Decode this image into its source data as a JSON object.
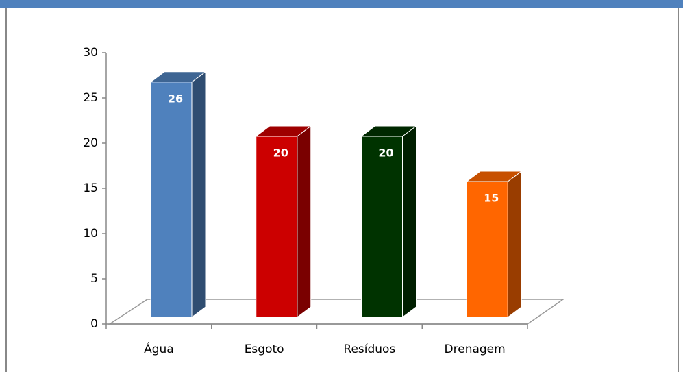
{
  "chart_data": {
    "type": "bar",
    "categories": [
      "Água",
      "Esgoto",
      "Resíduos",
      "Drenagem"
    ],
    "values": [
      26,
      20,
      20,
      15
    ],
    "colors": [
      "#4f81bd",
      "#cc0000",
      "#003300",
      "#ff6600"
    ],
    "ylim": [
      0,
      30
    ],
    "yticks": [
      0,
      5,
      10,
      15,
      20,
      25,
      30
    ],
    "grid": false
  }
}
